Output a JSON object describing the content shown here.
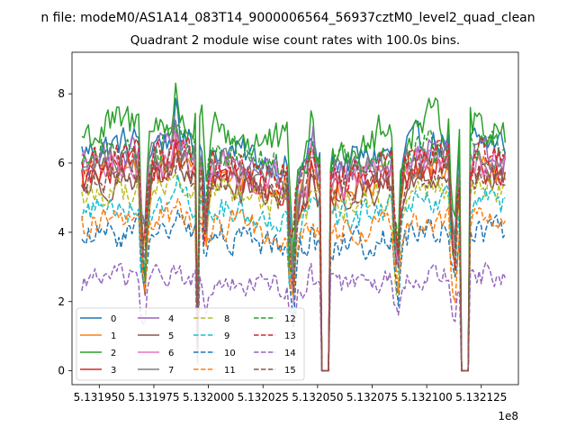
{
  "figure": {
    "suptitle": "n file: modeM0/AS1A14_083T14_9000006564_56937cztM0_level2_quad_clean"
  },
  "chart_data": {
    "type": "line",
    "title": "Quadrant 2 module wise count rates with 100.0s bins.",
    "xlabel": "",
    "ylabel": "",
    "x_offset_label": "1e8",
    "xlim": [
      513193750,
      513214200
    ],
    "ylim": [
      -0.4,
      9.2
    ],
    "x_ticks": [
      513195000,
      513197500,
      513200000,
      513202500,
      513205000,
      513207500,
      513210000,
      513212500
    ],
    "x_tick_labels": [
      "5.131950",
      "5.131975",
      "5.132000",
      "5.132025",
      "5.132050",
      "5.132075",
      "5.132100",
      "5.132125"
    ],
    "y_ticks": [
      0,
      2,
      4,
      6,
      8
    ],
    "y_tick_labels": [
      "0",
      "2",
      "4",
      "6",
      "8"
    ],
    "x_range_data": [
      513194200,
      513213600
    ],
    "bin_seconds": 100,
    "gaps": [
      [
        513205200,
        513205500
      ],
      [
        513211600,
        513211900
      ]
    ],
    "dips": [
      513197000,
      513199850,
      513203800,
      513208600,
      513211200
    ],
    "spikes": [
      513198500,
      513199850,
      513204700
    ],
    "legend": {
      "location": "lower-left",
      "columns": 4
    },
    "series": [
      {
        "name": "0",
        "color": "#1f77b4",
        "dash": "solid",
        "level": 6.3,
        "noise": 0.35
      },
      {
        "name": "1",
        "color": "#ff7f0e",
        "dash": "solid",
        "level": 5.6,
        "noise": 0.3
      },
      {
        "name": "2",
        "color": "#2ca02c",
        "dash": "solid",
        "level": 6.8,
        "noise": 0.45
      },
      {
        "name": "3",
        "color": "#d62728",
        "dash": "solid",
        "level": 5.5,
        "noise": 0.35
      },
      {
        "name": "4",
        "color": "#9467bd",
        "dash": "solid",
        "level": 6.0,
        "noise": 0.35
      },
      {
        "name": "5",
        "color": "#8c564b",
        "dash": "solid",
        "level": 5.3,
        "noise": 0.3
      },
      {
        "name": "6",
        "color": "#e377c2",
        "dash": "solid",
        "level": 5.8,
        "noise": 0.35
      },
      {
        "name": "7",
        "color": "#7f7f7f",
        "dash": "solid",
        "level": 5.9,
        "noise": 0.3
      },
      {
        "name": "8",
        "color": "#bcbd22",
        "dash": "dashed",
        "level": 5.0,
        "noise": 0.3
      },
      {
        "name": "9",
        "color": "#17becf",
        "dash": "dashed",
        "level": 4.6,
        "noise": 0.3
      },
      {
        "name": "10",
        "color": "#1f77b4",
        "dash": "dashed",
        "level": 3.8,
        "noise": 0.3
      },
      {
        "name": "11",
        "color": "#ff7f0e",
        "dash": "dashed",
        "level": 4.2,
        "noise": 0.3
      },
      {
        "name": "12",
        "color": "#2ca02c",
        "dash": "dashed",
        "level": 6.2,
        "noise": 0.35
      },
      {
        "name": "13",
        "color": "#d62728",
        "dash": "dashed",
        "level": 5.9,
        "noise": 0.35
      },
      {
        "name": "14",
        "color": "#9467bd",
        "dash": "dashed",
        "level": 2.6,
        "noise": 0.25
      },
      {
        "name": "15",
        "color": "#8c564b",
        "dash": "dashed",
        "level": 5.4,
        "noise": 0.3
      }
    ]
  }
}
